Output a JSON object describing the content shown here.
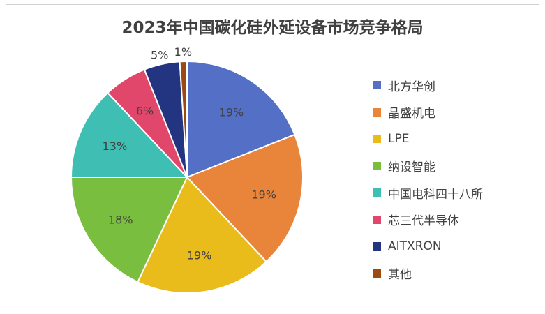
{
  "chart_data": {
    "type": "pie",
    "title": "2023年中国碳化硅外延设备市场竞争格局",
    "slices": [
      {
        "name": "北方华创",
        "value": 19,
        "label": "19%",
        "color": "#5470c6"
      },
      {
        "name": "晶盛机电",
        "value": 19,
        "label": "19%",
        "color": "#e8853a"
      },
      {
        "name": "LPE",
        "value": 19,
        "label": "19%",
        "color": "#e9bc1c"
      },
      {
        "name": "纳设智能",
        "value": 18,
        "label": "18%",
        "color": "#79be3f"
      },
      {
        "name": "中国电科四十八所",
        "value": 13,
        "label": "13%",
        "color": "#3fbfb4"
      },
      {
        "name": "芯三代半导体",
        "value": 6,
        "label": "6%",
        "color": "#e0476a"
      },
      {
        "name": "AITXRON",
        "value": 5,
        "label": "5%",
        "color": "#233580"
      },
      {
        "name": "其他",
        "value": 1,
        "label": "1%",
        "color": "#9b4a12"
      }
    ],
    "legend_position": "right"
  }
}
